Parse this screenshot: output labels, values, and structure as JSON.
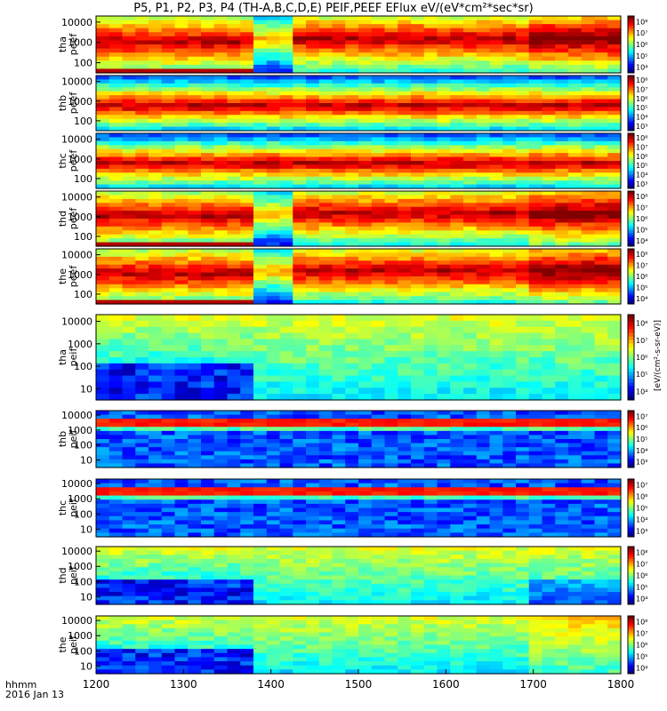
{
  "title": "P5, P1, P2, P3, P4 (TH-A,B,C,D,E) PEIF,PEEF EFlux eV/(eV*cm²*sec*sr)",
  "axis_caption": {
    "line1": "hhmm",
    "line2": "2016 Jan 13"
  },
  "colorbar_unit": "[eV/(cm²-s-sr-eV)]",
  "colors": {
    "low": "#2a00a0",
    "high": "#d40000",
    "background": "#ffffff"
  },
  "chart_data": {
    "type": "heatmap",
    "title": "P5, P1, P2, P3, P4 (TH-A,B,C,D,E) PEIF,PEEF EFlux eV/(eV*cm²*sec*sr)",
    "xlabel": "hhmm",
    "x_ticks": [
      "1200",
      "1300",
      "1400",
      "1500",
      "1600",
      "1700",
      "1800"
    ],
    "x_range": [
      1200,
      1800
    ],
    "panels": [
      {
        "label": [
          "tha",
          "peef"
        ],
        "y_ticks": [
          "100",
          "1000",
          "10000"
        ],
        "y_scale": "log",
        "colorbar_ticks": [
          "10⁴",
          "10⁵",
          "10⁶",
          "10⁷",
          "10⁸"
        ]
      },
      {
        "label": [
          "thb",
          "peef"
        ],
        "y_ticks": [
          "100",
          "1000",
          "10000"
        ],
        "y_scale": "log",
        "colorbar_ticks": [
          "10³",
          "10⁴",
          "10⁵",
          "10⁶",
          "10⁷",
          "10⁸"
        ]
      },
      {
        "label": [
          "thc",
          "peef"
        ],
        "y_ticks": [
          "100",
          "1000",
          "10000"
        ],
        "y_scale": "log",
        "colorbar_ticks": [
          "10³",
          "10⁴",
          "10⁵",
          "10⁶",
          "10⁷",
          "10⁸"
        ]
      },
      {
        "label": [
          "thd",
          "peef"
        ],
        "y_ticks": [
          "100",
          "1000",
          "10000"
        ],
        "y_scale": "log",
        "colorbar_ticks": [
          "10⁴",
          "10⁵",
          "10⁶",
          "10⁷",
          "10⁸"
        ]
      },
      {
        "label": [
          "the",
          "peef"
        ],
        "y_ticks": [
          "100",
          "1000",
          "10000"
        ],
        "y_scale": "log",
        "colorbar_ticks": [
          "10⁴",
          "10⁵",
          "10⁶",
          "10⁷",
          "10⁸"
        ]
      },
      {
        "label": [
          "tha",
          "peif"
        ],
        "y_ticks": [
          "10",
          "100",
          "1000",
          "10000"
        ],
        "y_scale": "log",
        "colorbar_ticks": [
          "10⁴",
          "10⁵",
          "10⁶",
          "10⁷",
          "10⁸"
        ]
      },
      {
        "label": [
          "thb",
          "peif"
        ],
        "y_ticks": [
          "10",
          "100",
          "1000",
          "10000"
        ],
        "y_scale": "log",
        "colorbar_ticks": [
          "10³",
          "10⁴",
          "10⁵",
          "10⁶",
          "10⁷"
        ]
      },
      {
        "label": [
          "thc",
          "peif"
        ],
        "y_ticks": [
          "10",
          "100",
          "1000",
          "10000"
        ],
        "y_scale": "log",
        "colorbar_ticks": [
          "10³",
          "10⁴",
          "10⁵",
          "10⁶",
          "10⁷"
        ]
      },
      {
        "label": [
          "thd",
          "peif"
        ],
        "y_ticks": [
          "10",
          "100",
          "1000",
          "10000"
        ],
        "y_scale": "log",
        "colorbar_ticks": [
          "10⁴",
          "10⁵",
          "10⁶",
          "10⁷",
          "10⁸"
        ]
      },
      {
        "label": [
          "the",
          "peif"
        ],
        "y_ticks": [
          "10",
          "100",
          "1000",
          "10000"
        ],
        "y_scale": "log",
        "colorbar_ticks": [
          "10⁴",
          "10⁵",
          "10⁶",
          "10⁷",
          "10⁸"
        ]
      }
    ]
  }
}
